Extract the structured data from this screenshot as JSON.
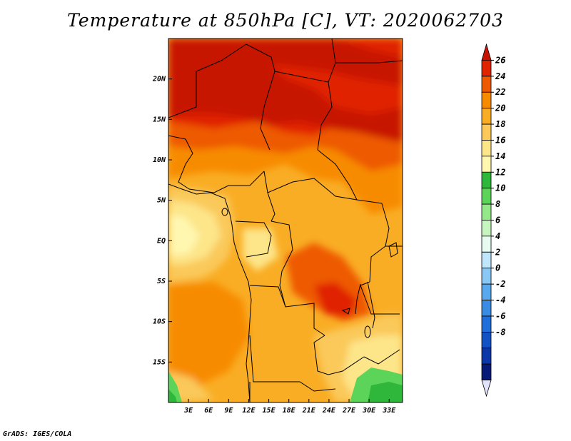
{
  "title": "Temperature at 850hPa [C], VT: 2020062703",
  "credit": "GrADS: IGES/COLA",
  "map": {
    "lon_range": [
      0,
      35
    ],
    "lat_range": [
      -20,
      25
    ],
    "lat_ticks": [
      {
        "value": 20,
        "label": "20N"
      },
      {
        "value": 15,
        "label": "15N"
      },
      {
        "value": 10,
        "label": "10N"
      },
      {
        "value": 5,
        "label": "5N"
      },
      {
        "value": 0,
        "label": "EQ"
      },
      {
        "value": -5,
        "label": "5S"
      },
      {
        "value": -10,
        "label": "10S"
      },
      {
        "value": -15,
        "label": "15S"
      }
    ],
    "lon_ticks": [
      {
        "value": 3,
        "label": "3E"
      },
      {
        "value": 6,
        "label": "6E"
      },
      {
        "value": 9,
        "label": "9E"
      },
      {
        "value": 12,
        "label": "12E"
      },
      {
        "value": 15,
        "label": "15E"
      },
      {
        "value": 18,
        "label": "18E"
      },
      {
        "value": 21,
        "label": "21E"
      },
      {
        "value": 24,
        "label": "24E"
      },
      {
        "value": 27,
        "label": "27E"
      },
      {
        "value": 30,
        "label": "30E"
      },
      {
        "value": 33,
        "label": "33E"
      }
    ]
  },
  "colorbar": {
    "levels": [
      "26",
      "24",
      "22",
      "20",
      "18",
      "16",
      "14",
      "12",
      "10",
      "8",
      "6",
      "4",
      "2",
      "0",
      "-2",
      "-4",
      "-6",
      "-8"
    ],
    "colors": [
      "#c71400",
      "#e02400",
      "#ee5a00",
      "#f78b00",
      "#f9ad24",
      "#fac95a",
      "#fde589",
      "#fff7b0",
      "#2fb73b",
      "#5cd45a",
      "#95e88a",
      "#c6f5c0",
      "#e7fbf1",
      "#bfe6fb",
      "#89c8f4",
      "#58a8ed",
      "#3a8ce3",
      "#1f6ed9",
      "#1352c4",
      "#0b37a8",
      "#071a78",
      "#e0e3fb"
    ]
  }
}
